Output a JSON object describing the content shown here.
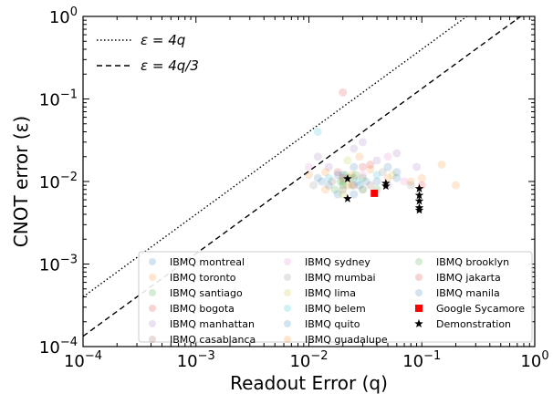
{
  "chart_data": {
    "type": "scatter",
    "title": "",
    "xlabel": "Readout Error (q)",
    "ylabel": "CNOT error (ε)",
    "xscale": "log",
    "yscale": "log",
    "xlim": [
      0.0001,
      1
    ],
    "ylim": [
      0.0001,
      1
    ],
    "x_ticks": [
      {
        "value": 0.0001,
        "base": "10",
        "exp": "−4"
      },
      {
        "value": 0.001,
        "base": "10",
        "exp": "−3"
      },
      {
        "value": 0.01,
        "base": "10",
        "exp": "−2"
      },
      {
        "value": 0.1,
        "base": "10",
        "exp": "−1"
      },
      {
        "value": 1,
        "base": "10",
        "exp": "0"
      }
    ],
    "y_ticks": [
      {
        "value": 0.0001,
        "base": "10",
        "exp": "−4"
      },
      {
        "value": 0.001,
        "base": "10",
        "exp": "−3"
      },
      {
        "value": 0.01,
        "base": "10",
        "exp": "−2"
      },
      {
        "value": 0.1,
        "base": "10",
        "exp": "−1"
      },
      {
        "value": 1,
        "base": "10",
        "exp": "0"
      }
    ],
    "grid": false,
    "lines": [
      {
        "name": "ε = 4q",
        "factor": 4,
        "style": "dotted"
      },
      {
        "name": "ε = 4q/3",
        "factor": 1.3333,
        "style": "dashed"
      }
    ],
    "line_legend_position": "top-left",
    "legend_position": "bottom-right",
    "series": [
      {
        "name": "IBMQ montreal",
        "color": "#1f77b4",
        "marker": "circle",
        "points": [
          [
            0.015,
            0.009
          ],
          [
            0.02,
            0.012
          ],
          [
            0.03,
            0.008
          ],
          [
            0.012,
            0.011
          ],
          [
            0.025,
            0.015
          ],
          [
            0.04,
            0.01
          ],
          [
            0.018,
            0.007
          ],
          [
            0.06,
            0.013
          ]
        ]
      },
      {
        "name": "IBMQ toronto",
        "color": "#ff7f0e",
        "marker": "circle",
        "points": [
          [
            0.01,
            0.012
          ],
          [
            0.022,
            0.009
          ],
          [
            0.035,
            0.014
          ],
          [
            0.05,
            0.011
          ],
          [
            0.014,
            0.008
          ],
          [
            0.028,
            0.02
          ],
          [
            0.08,
            0.01
          ]
        ]
      },
      {
        "name": "IBMQ santiago",
        "color": "#2ca02c",
        "marker": "circle",
        "points": [
          [
            0.02,
            0.01
          ],
          [
            0.024,
            0.009
          ],
          [
            0.03,
            0.011
          ],
          [
            0.021,
            0.012
          ],
          [
            0.04,
            0.008
          ]
        ]
      },
      {
        "name": "IBMQ bogota",
        "color": "#d62728",
        "marker": "circle",
        "points": [
          [
            0.02,
            0.12
          ],
          [
            0.018,
            0.013
          ],
          [
            0.025,
            0.009
          ],
          [
            0.03,
            0.015
          ]
        ]
      },
      {
        "name": "IBMQ manhattan",
        "color": "#9467bd",
        "marker": "circle",
        "points": [
          [
            0.012,
            0.02
          ],
          [
            0.025,
            0.025
          ],
          [
            0.04,
            0.018
          ],
          [
            0.06,
            0.022
          ],
          [
            0.015,
            0.015
          ],
          [
            0.09,
            0.015
          ],
          [
            0.03,
            0.03
          ],
          [
            0.05,
            0.009
          ]
        ]
      },
      {
        "name": "IBMQ casablanca",
        "color": "#8c564b",
        "marker": "circle",
        "points": [
          [
            0.016,
            0.01
          ],
          [
            0.035,
            0.009
          ],
          [
            0.02,
            0.008
          ]
        ]
      },
      {
        "name": "IBMQ sydney",
        "color": "#e377c2",
        "marker": "circle",
        "points": [
          [
            0.01,
            0.015
          ],
          [
            0.03,
            0.012
          ],
          [
            0.05,
            0.02
          ],
          [
            0.07,
            0.01
          ]
        ]
      },
      {
        "name": "IBMQ mumbai",
        "color": "#7f7f7f",
        "marker": "circle",
        "points": [
          [
            0.011,
            0.009
          ],
          [
            0.025,
            0.011
          ],
          [
            0.045,
            0.013
          ],
          [
            0.08,
            0.009
          ]
        ]
      },
      {
        "name": "IBMQ lima",
        "color": "#bcbd22",
        "marker": "circle",
        "points": [
          [
            0.02,
            0.007
          ],
          [
            0.03,
            0.008
          ],
          [
            0.055,
            0.012
          ],
          [
            0.022,
            0.018
          ]
        ]
      },
      {
        "name": "IBMQ belem",
        "color": "#17becf",
        "marker": "circle",
        "points": [
          [
            0.015,
            0.011
          ],
          [
            0.027,
            0.01
          ],
          [
            0.04,
            0.012
          ],
          [
            0.012,
            0.04
          ]
        ]
      },
      {
        "name": "IBMQ quito",
        "color": "#1f77b4",
        "marker": "circle",
        "points": [
          [
            0.018,
            0.012
          ],
          [
            0.032,
            0.01
          ],
          [
            0.06,
            0.011
          ],
          [
            0.025,
            0.007
          ]
        ]
      },
      {
        "name": "IBMQ guadalupe",
        "color": "#ff7f0e",
        "marker": "circle",
        "points": [
          [
            0.014,
            0.013
          ],
          [
            0.024,
            0.012
          ],
          [
            0.1,
            0.011
          ],
          [
            0.2,
            0.009
          ],
          [
            0.15,
            0.016
          ]
        ]
      },
      {
        "name": "IBMQ brooklyn",
        "color": "#2ca02c",
        "marker": "circle",
        "points": [
          [
            0.02,
            0.009
          ],
          [
            0.023,
            0.011
          ],
          [
            0.019,
            0.01
          ],
          [
            0.026,
            0.012
          ],
          [
            0.017,
            0.008
          ]
        ]
      },
      {
        "name": "IBMQ jakarta",
        "color": "#d62728",
        "marker": "circle",
        "points": [
          [
            0.02,
            0.011
          ],
          [
            0.035,
            0.016
          ],
          [
            0.1,
            0.009
          ]
        ]
      },
      {
        "name": "IBMQ manila",
        "color": "#1f77b4",
        "marker": "circle",
        "points": [
          [
            0.013,
            0.01
          ],
          [
            0.028,
            0.009
          ],
          [
            0.05,
            0.015
          ]
        ]
      },
      {
        "name": "Google Sycamore",
        "color": "#ff0000",
        "marker": "square",
        "points": [
          [
            0.038,
            0.0072
          ]
        ]
      },
      {
        "name": "Demonstration",
        "color": "#000000",
        "marker": "star",
        "points": [
          [
            0.022,
            0.0108
          ],
          [
            0.022,
            0.0062
          ],
          [
            0.048,
            0.0095
          ],
          [
            0.048,
            0.0088
          ],
          [
            0.095,
            0.0082
          ],
          [
            0.095,
            0.0068
          ],
          [
            0.095,
            0.0058
          ],
          [
            0.095,
            0.0048
          ],
          [
            0.095,
            0.0045
          ]
        ]
      }
    ]
  }
}
